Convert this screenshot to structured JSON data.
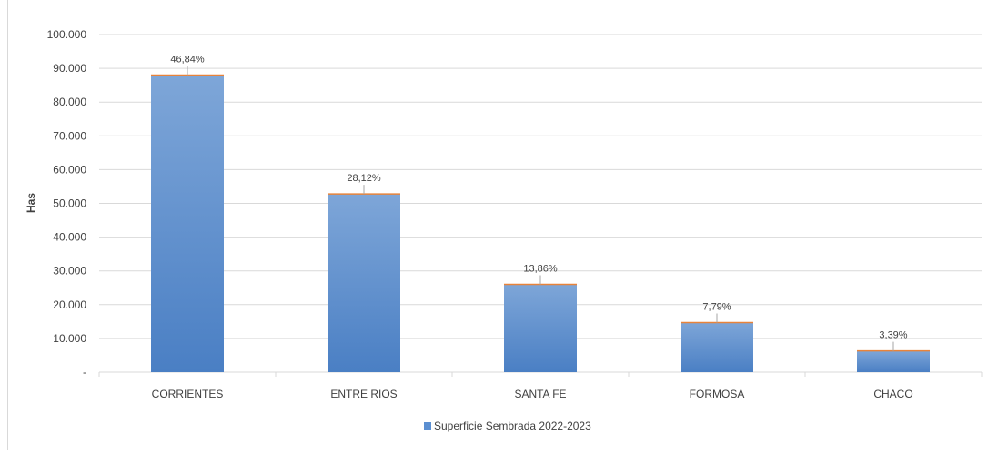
{
  "chart_data": {
    "type": "bar",
    "categories": [
      "CORRIENTES",
      "ENTRE RIOS",
      "SANTA FE",
      "FORMOSA",
      "CHACO"
    ],
    "series": [
      {
        "name": "Superficie Sembrada 2022-2023",
        "values": [
          88000,
          52800,
          26000,
          14700,
          6300
        ],
        "labels": [
          "46,84%",
          "28,12%",
          "13,86%",
          "7,79%",
          "3,39%"
        ]
      }
    ],
    "ylabel": "Has",
    "xlabel": "",
    "ylim": [
      0,
      100000
    ],
    "ytick_values": [
      0,
      10000,
      20000,
      30000,
      40000,
      50000,
      60000,
      70000,
      80000,
      90000,
      100000
    ],
    "ytick_labels": [
      "-",
      "10.000",
      "20.000",
      "30.000",
      "40.000",
      "50.000",
      "60.000",
      "70.000",
      "80.000",
      "90.000",
      "100.000"
    ],
    "grid": true,
    "legend_position": "bottom",
    "colors": {
      "bar_top": "#7ea6d8",
      "bar_bottom": "#4a7fc4",
      "bar_cap": "#e8833a",
      "grid": "#d9d9d9",
      "text": "#404040"
    }
  }
}
